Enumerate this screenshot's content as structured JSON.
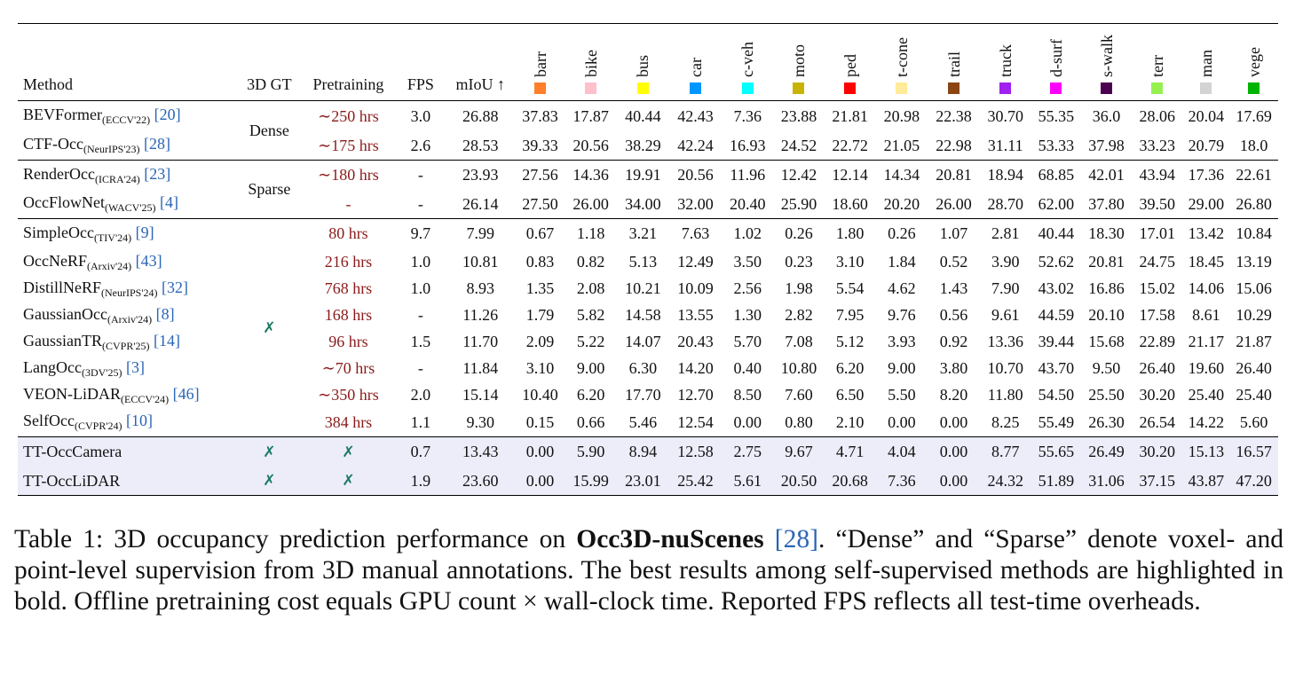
{
  "headers": {
    "method": "Method",
    "gt": "3D GT",
    "pretraining": "Pretraining",
    "fps": "FPS",
    "miou": "mIoU ↑"
  },
  "classes": [
    {
      "name": "barr",
      "color": "#ff7f2a"
    },
    {
      "name": "bike",
      "color": "#ffc0cb"
    },
    {
      "name": "bus",
      "color": "#ffff00"
    },
    {
      "name": "car",
      "color": "#0096ff"
    },
    {
      "name": "c-veh",
      "color": "#00ffff"
    },
    {
      "name": "moto",
      "color": "#c8b400"
    },
    {
      "name": "ped",
      "color": "#ff0000"
    },
    {
      "name": "t-cone",
      "color": "#ffeb99"
    },
    {
      "name": "trail",
      "color": "#8b4513"
    },
    {
      "name": "truck",
      "color": "#a020f0"
    },
    {
      "name": "d-surf",
      "color": "#ff00ff"
    },
    {
      "name": "s-walk",
      "color": "#4b0050"
    },
    {
      "name": "terr",
      "color": "#96f050"
    },
    {
      "name": "man",
      "color": "#d3d3d3"
    },
    {
      "name": "vege",
      "color": "#00b400"
    }
  ],
  "groups": [
    {
      "gt": "Dense",
      "rows": [
        {
          "method": "BEVFormer",
          "venue": "(ECCV'22)",
          "ref": "[20]",
          "pre": "∼250 hrs",
          "fps": "3.0",
          "miou": "26.88",
          "vals": [
            "37.83",
            "17.87",
            "40.44",
            "42.43",
            "7.36",
            "23.88",
            "21.81",
            "20.98",
            "22.38",
            "30.70",
            "55.35",
            "36.0",
            "28.06",
            "20.04",
            "17.69"
          ]
        },
        {
          "method": "CTF-Occ",
          "venue": "(NeurIPS'23)",
          "ref": "[28]",
          "pre": "∼175 hrs",
          "fps": "2.6",
          "miou": "28.53",
          "vals": [
            "39.33",
            "20.56",
            "38.29",
            "42.24",
            "16.93",
            "24.52",
            "22.72",
            "21.05",
            "22.98",
            "31.11",
            "53.33",
            "37.98",
            "33.23",
            "20.79",
            "18.0"
          ]
        }
      ]
    },
    {
      "gt": "Sparse",
      "rows": [
        {
          "method": "RenderOcc",
          "venue": "(ICRA'24)",
          "ref": "[23]",
          "pre": "∼180 hrs",
          "fps": "-",
          "miou": "23.93",
          "vals": [
            "27.56",
            "14.36",
            "19.91",
            "20.56",
            "11.96",
            "12.42",
            "12.14",
            "14.34",
            "20.81",
            "18.94",
            "68.85",
            "42.01",
            "43.94",
            "17.36",
            "22.61"
          ]
        },
        {
          "method": "OccFlowNet",
          "venue": "(WACV'25)",
          "ref": "[4]",
          "pre": "-",
          "fps": "-",
          "miou": "26.14",
          "vals": [
            "27.50",
            "26.00",
            "34.00",
            "32.00",
            "20.40",
            "25.90",
            "18.60",
            "20.20",
            "26.00",
            "28.70",
            "62.00",
            "37.80",
            "39.50",
            "29.00",
            "26.80"
          ]
        }
      ]
    },
    {
      "gt": "✗",
      "rows": [
        {
          "method": "SimpleOcc",
          "venue": "(TIV'24)",
          "ref": "[9]",
          "pre": "80 hrs",
          "fps": "9.7",
          "miou": "7.99",
          "vals": [
            "0.67",
            "1.18",
            "3.21",
            "7.63",
            "1.02",
            "0.26",
            "1.80",
            "0.26",
            "1.07",
            "2.81",
            "40.44",
            "18.30",
            "17.01",
            "13.42",
            "10.84"
          ]
        },
        {
          "method": "OccNeRF",
          "venue": "(Arxiv'24)",
          "ref": "[43]",
          "pre": "216 hrs",
          "fps": "1.0",
          "miou": "10.81",
          "vals": [
            "0.83",
            "0.82",
            "5.13",
            "12.49",
            "3.50",
            "0.23",
            "3.10",
            "1.84",
            "0.52",
            "3.90",
            "52.62",
            "20.81",
            "24.75",
            "18.45",
            "13.19"
          ]
        },
        {
          "method": "DistillNeRF",
          "venue": "(NeurIPS'24)",
          "ref": "[32]",
          "pre": "768 hrs",
          "fps": "1.0",
          "miou": "8.93",
          "vals": [
            "1.35",
            "2.08",
            "10.21",
            "10.09",
            "2.56",
            "1.98",
            "5.54",
            "4.62",
            "1.43",
            "7.90",
            "43.02",
            "16.86",
            "15.02",
            "14.06",
            "15.06"
          ]
        },
        {
          "method": "GaussianOcc",
          "venue": "(Arxiv'24)",
          "ref": "[8]",
          "pre": "168 hrs",
          "fps": "-",
          "miou": "11.26",
          "vals": [
            "1.79",
            "5.82",
            "14.58",
            "13.55",
            "1.30",
            "2.82",
            "7.95",
            "9.76",
            "0.56",
            "9.61",
            "44.59",
            "20.10",
            "17.58",
            "8.61",
            "10.29"
          ]
        },
        {
          "method": "GaussianTR",
          "venue": "(CVPR'25)",
          "ref": "[14]",
          "pre": "96 hrs",
          "fps": "1.5",
          "miou": "11.70",
          "vals": [
            "2.09",
            "5.22",
            "14.07",
            "20.43",
            "5.70",
            "7.08",
            "5.12",
            "3.93",
            "0.92",
            "13.36",
            "39.44",
            "15.68",
            "22.89",
            "21.17",
            "21.87"
          ]
        },
        {
          "method": "LangOcc",
          "venue": "(3DV'25)",
          "ref": "[3]",
          "pre": "∼70 hrs",
          "fps": "-",
          "miou": "11.84",
          "vals": [
            "3.10",
            "9.00",
            "6.30",
            "14.20",
            "0.40",
            "10.80",
            "6.20",
            "9.00",
            "3.80",
            "10.70",
            "43.70",
            "9.50",
            "26.40",
            "19.60",
            "26.40"
          ]
        },
        {
          "method": "VEON-LiDAR",
          "venue": "(ECCV'24)",
          "ref": "[46]",
          "pre": "∼350 hrs",
          "fps": "2.0",
          "miou": "15.14",
          "vals": [
            "10.40",
            "6.20",
            "17.70",
            "12.70",
            "8.50",
            "7.60",
            "6.50",
            "5.50",
            "8.20",
            "11.80",
            "54.50",
            "25.50",
            "30.20",
            "25.40",
            "25.40"
          ]
        },
        {
          "method": "SelfOcc",
          "venue": "(CVPR'24)",
          "ref": "[10]",
          "pre": "384 hrs",
          "fps": "1.1",
          "miou": "9.30",
          "vals": [
            "0.15",
            "0.66",
            "5.46",
            "12.54",
            "0.00",
            "0.80",
            "2.10",
            "0.00",
            "0.00",
            "8.25",
            "55.49",
            "26.30",
            "26.54",
            "14.22",
            "5.60"
          ]
        }
      ]
    },
    {
      "gt": "",
      "rows": [
        {
          "method": "TT-OccCamera",
          "venue": "",
          "ref": "",
          "gt_mark": "✗",
          "pre": "✗",
          "fps": "0.7",
          "miou": "13.43",
          "vals": [
            "0.00",
            "5.90",
            "8.94",
            "12.58",
            "2.75",
            "9.67",
            "4.71",
            "4.04",
            "0.00",
            "8.77",
            "55.65",
            "26.49",
            "30.20",
            "15.13",
            "16.57"
          ]
        },
        {
          "method": "TT-OccLiDAR",
          "venue": "",
          "ref": "",
          "gt_mark": "✗",
          "pre": "✗",
          "fps": "1.9",
          "miou": "23.60",
          "vals": [
            "0.00",
            "15.99",
            "23.01",
            "25.42",
            "5.61",
            "20.50",
            "20.68",
            "7.36",
            "0.00",
            "24.32",
            "51.89",
            "31.06",
            "37.15",
            "43.87",
            "47.20"
          ]
        }
      ]
    }
  ],
  "caption": {
    "prefix": "Table 1: 3D occupancy prediction performance on ",
    "dataset": "Occ3D-nuScenes",
    "ref": "[28]",
    "rest": ". “Dense” and “Sparse” denote voxel- and point-level supervision from 3D manual annotations. The best results among self-supervised methods are highlighted in bold. Offline pretraining cost equals GPU count × wall-clock time. Reported FPS reflects all test-time overheads."
  }
}
